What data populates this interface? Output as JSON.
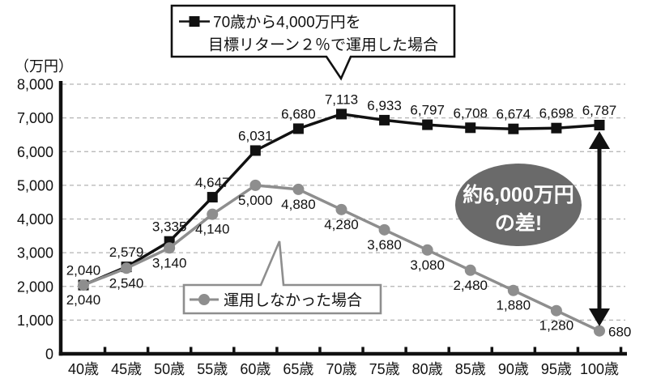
{
  "chart_data": {
    "type": "line",
    "y_axis_unit": "（万円）",
    "categories": [
      "40歳",
      "45歳",
      "50歳",
      "55歳",
      "60歳",
      "65歳",
      "70歳",
      "75歳",
      "80歳",
      "85歳",
      "90歳",
      "95歳",
      "100歳"
    ],
    "ylim": [
      0,
      8000
    ],
    "ytick_interval": 1000,
    "ytick_labels": [
      "0",
      "1,000",
      "2,000",
      "3,000",
      "4,000",
      "5,000",
      "6,000",
      "7,000",
      "8,000"
    ],
    "grid": "horizontal-dashed",
    "legend_position": "callout-boxes",
    "series": [
      {
        "name": "70歳から4,000万円を目標リターン２％で運用した場合",
        "legend_lines": [
          "70歳から4,000万円を",
          "目標リターン２％で運用した場合"
        ],
        "marker": "square",
        "color": "#111111",
        "values": [
          2040,
          2579,
          3335,
          4647,
          6031,
          6680,
          7113,
          6933,
          6797,
          6708,
          6674,
          6698,
          6787
        ]
      },
      {
        "name": "運用しなかった場合",
        "legend_lines": [
          "運用しなかった場合"
        ],
        "marker": "circle",
        "color": "#8e8e8e",
        "values": [
          2040,
          2540,
          3140,
          4140,
          5000,
          4880,
          4280,
          3680,
          3080,
          2480,
          1880,
          1280,
          680
        ]
      }
    ],
    "annotation": {
      "text_lines": [
        "約6,000万円",
        "の差!"
      ],
      "fill": "#6a6a6a",
      "text_color": "#ffffff"
    },
    "colors": {
      "axis": "#111111",
      "gridline": "#b3b3b3",
      "label_text": "#111111"
    }
  }
}
